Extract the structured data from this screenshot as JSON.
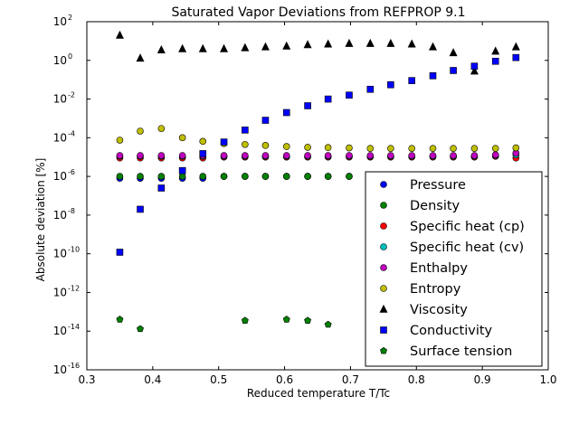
{
  "chart_data": {
    "type": "scatter",
    "title": "Saturated Vapor Deviations from REFPROP 9.1",
    "xlabel": "Reduced temperature T/Tc",
    "ylabel": "Absolute deviation [%]",
    "xlim": [
      0.3,
      1.0
    ],
    "ylim_exp": [
      -16,
      2
    ],
    "yscale": "log",
    "grid": false,
    "legend_position": "lower-right",
    "xticks": [
      "0.3",
      "0.4",
      "0.5",
      "0.6",
      "0.7",
      "0.8",
      "0.9",
      "1.0"
    ],
    "yticks": [
      {
        "exp": -16,
        "label": "10",
        "sup": "-16"
      },
      {
        "exp": -14,
        "label": "10",
        "sup": "-14"
      },
      {
        "exp": -12,
        "label": "10",
        "sup": "-12"
      },
      {
        "exp": -10,
        "label": "10",
        "sup": "-10"
      },
      {
        "exp": -8,
        "label": "10",
        "sup": "-8"
      },
      {
        "exp": -6,
        "label": "10",
        "sup": "-6"
      },
      {
        "exp": -4,
        "label": "10",
        "sup": "-4"
      },
      {
        "exp": -2,
        "label": "10",
        "sup": "-2"
      },
      {
        "exp": 0,
        "label": "10",
        "sup": "0"
      },
      {
        "exp": 2,
        "label": "10",
        "sup": "2"
      }
    ],
    "series": [
      {
        "name": "Pressure",
        "marker": "circle",
        "color": "#0000ff",
        "x": [
          0.35,
          0.381,
          0.413,
          0.445,
          0.476,
          0.508,
          0.54,
          0.571,
          0.603,
          0.635,
          0.666,
          0.698,
          0.73,
          0.761,
          0.793,
          0.825,
          0.856,
          0.888,
          0.92,
          0.951
        ],
        "y": [
          8e-07,
          8e-07,
          8e-07,
          8e-07,
          8e-07,
          1e-06,
          1e-06,
          1e-06,
          1e-06,
          1e-06,
          1e-06,
          1e-06,
          1e-06,
          1e-06,
          1e-06,
          1e-06,
          1e-06,
          1e-06,
          1e-06,
          1e-06
        ]
      },
      {
        "name": "Density",
        "marker": "circle",
        "color": "#008000",
        "x": [
          0.35,
          0.381,
          0.413,
          0.445,
          0.476,
          0.508,
          0.54,
          0.571,
          0.603,
          0.635,
          0.666,
          0.698,
          0.73,
          0.761,
          0.793,
          0.825,
          0.856,
          0.888,
          0.92,
          0.951
        ],
        "y": [
          1e-06,
          1e-06,
          1e-06,
          1e-06,
          1e-06,
          1e-06,
          1e-06,
          1e-06,
          1e-06,
          1e-06,
          1e-06,
          1e-06,
          1e-06,
          1e-06,
          1e-06,
          1e-06,
          1e-06,
          1e-06,
          1e-06,
          1e-06
        ]
      },
      {
        "name": "Specific heat (cp)",
        "marker": "circle",
        "color": "#ff0000",
        "x": [
          0.35,
          0.381,
          0.413,
          0.445,
          0.476,
          0.508,
          0.54,
          0.571,
          0.603,
          0.635,
          0.666,
          0.698,
          0.73,
          0.761,
          0.793,
          0.825,
          0.856,
          0.888,
          0.92,
          0.951
        ],
        "y": [
          9e-06,
          9e-06,
          9e-06,
          9e-06,
          9e-06,
          1e-05,
          1e-05,
          1e-05,
          1e-05,
          1e-05,
          1e-05,
          1e-05,
          1e-05,
          1e-05,
          1e-05,
          1e-05,
          1e-05,
          1e-05,
          1.1e-05,
          9e-06
        ]
      },
      {
        "name": "Specific heat (cv)",
        "marker": "circle",
        "color": "#00bfbf",
        "x": [
          0.35,
          0.381,
          0.413,
          0.445,
          0.476,
          0.508,
          0.54,
          0.571,
          0.603,
          0.635,
          0.666,
          0.698,
          0.73,
          0.761,
          0.793,
          0.825,
          0.856,
          0.888,
          0.92,
          0.951
        ],
        "y": [
          1.1e-05,
          1.1e-05,
          1.1e-05,
          1.1e-05,
          1.1e-05,
          1.1e-05,
          1.1e-05,
          1.1e-05,
          1.1e-05,
          1.1e-05,
          1.1e-05,
          1.1e-05,
          1.1e-05,
          1.1e-05,
          1.1e-05,
          1.1e-05,
          1.1e-05,
          1.1e-05,
          1.2e-05,
          1.3e-05
        ]
      },
      {
        "name": "Enthalpy",
        "marker": "circle",
        "color": "#bf00bf",
        "x": [
          0.35,
          0.381,
          0.413,
          0.445,
          0.476,
          0.508,
          0.54,
          0.571,
          0.603,
          0.635,
          0.666,
          0.698,
          0.73,
          0.761,
          0.793,
          0.825,
          0.856,
          0.888,
          0.92,
          0.951
        ],
        "y": [
          1.2e-05,
          1.2e-05,
          1.2e-05,
          1.2e-05,
          1.2e-05,
          1.2e-05,
          1.2e-05,
          1.2e-05,
          1.2e-05,
          1.2e-05,
          1.2e-05,
          1.2e-05,
          1.2e-05,
          1.2e-05,
          1.2e-05,
          1.2e-05,
          1.2e-05,
          1.2e-05,
          1.3e-05,
          1.6e-05
        ]
      },
      {
        "name": "Entropy",
        "marker": "circle",
        "color": "#bfbf00",
        "x": [
          0.35,
          0.381,
          0.413,
          0.445,
          0.476,
          0.508,
          0.54,
          0.571,
          0.603,
          0.635,
          0.666,
          0.698,
          0.73,
          0.761,
          0.793,
          0.825,
          0.856,
          0.888,
          0.92,
          0.951
        ],
        "y": [
          7.5e-05,
          0.00022,
          0.0003,
          0.0001,
          6.5e-05,
          5e-05,
          4.5e-05,
          4e-05,
          3.5e-05,
          3.2e-05,
          3.1e-05,
          3e-05,
          2.8e-05,
          2.8e-05,
          2.8e-05,
          2.8e-05,
          2.8e-05,
          2.8e-05,
          2.8e-05,
          3e-05
        ]
      },
      {
        "name": "Viscosity",
        "marker": "triangle",
        "color": "#000000",
        "x": [
          0.35,
          0.381,
          0.413,
          0.445,
          0.476,
          0.508,
          0.54,
          0.571,
          0.603,
          0.635,
          0.666,
          0.698,
          0.73,
          0.761,
          0.793,
          0.825,
          0.856,
          0.888,
          0.92,
          0.951
        ],
        "y": [
          20,
          1.3,
          3.5,
          4,
          4,
          4,
          4.5,
          5,
          5.5,
          6.5,
          7,
          7.5,
          7.5,
          7.5,
          7,
          5,
          2.5,
          0.28,
          3,
          5
        ]
      },
      {
        "name": "Conductivity",
        "marker": "square",
        "color": "#0000ff",
        "x": [
          0.35,
          0.381,
          0.413,
          0.445,
          0.476,
          0.508,
          0.54,
          0.571,
          0.603,
          0.635,
          0.666,
          0.698,
          0.73,
          0.761,
          0.793,
          0.825,
          0.856,
          0.888,
          0.92,
          0.951
        ],
        "y": [
          1.2e-10,
          2e-08,
          2.5e-07,
          2e-06,
          1.5e-05,
          6e-05,
          0.00025,
          0.0008,
          0.002,
          0.0045,
          0.01,
          0.016,
          0.032,
          0.055,
          0.09,
          0.16,
          0.3,
          0.5,
          0.9,
          1.4
        ]
      },
      {
        "name": "Surface tension",
        "marker": "pentagon",
        "color": "#008000",
        "x": [
          0.35,
          0.381,
          0.54,
          0.603,
          0.635,
          0.666
        ],
        "y": [
          4e-14,
          1.3e-14,
          3.5e-14,
          4e-14,
          3.5e-14,
          2.2e-14
        ]
      }
    ]
  }
}
